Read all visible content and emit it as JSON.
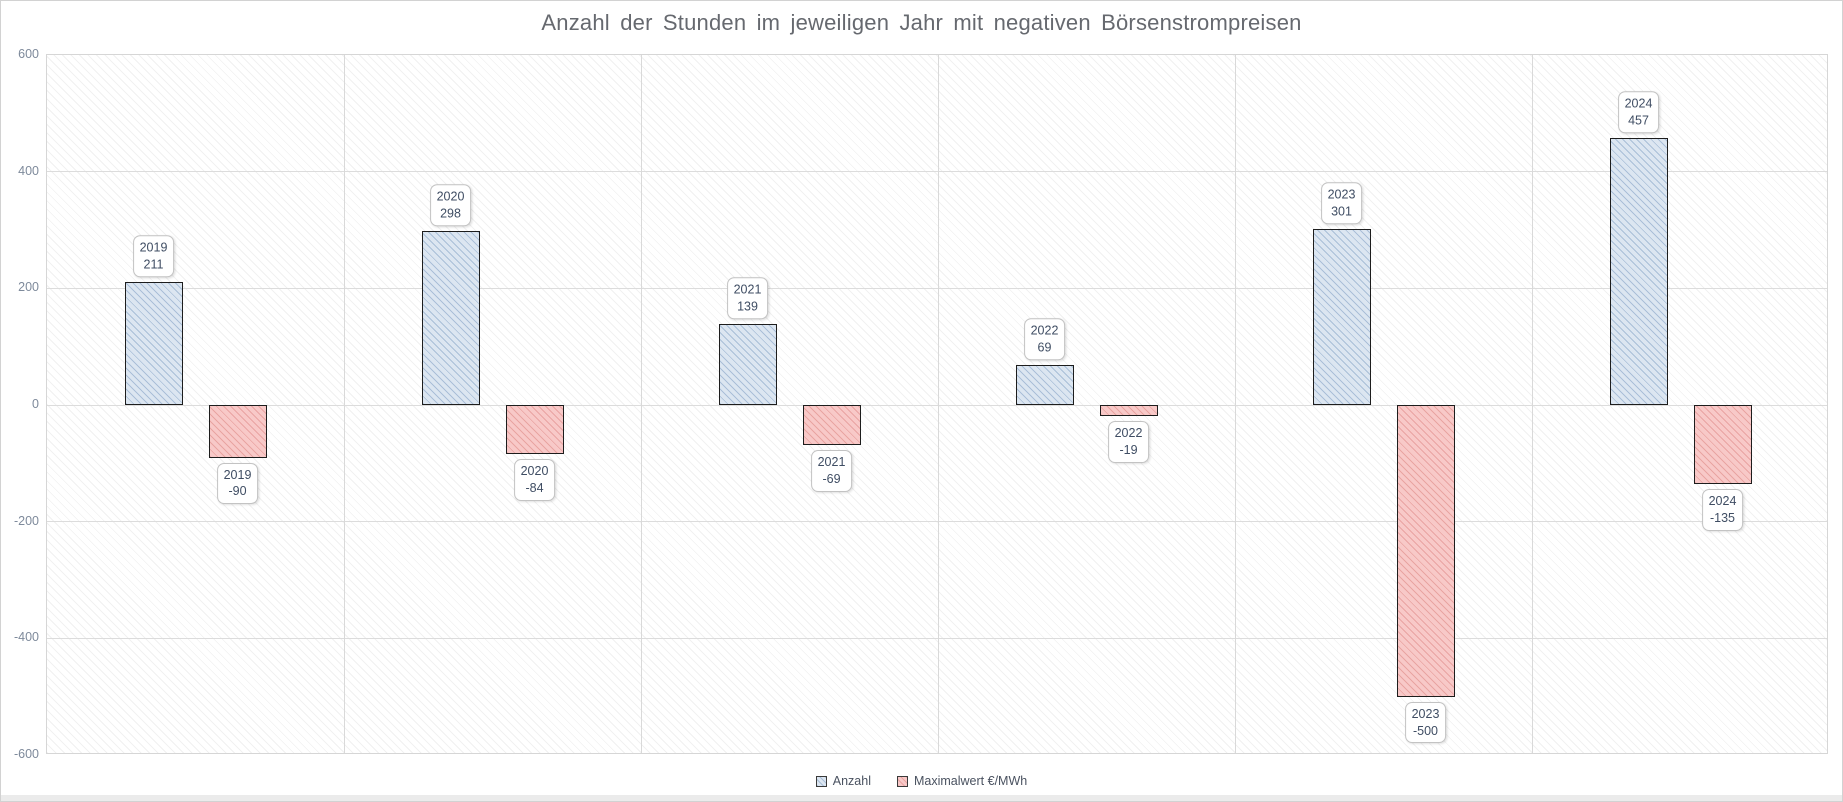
{
  "title": "Anzahl der Stunden im jeweiligen Jahr mit negativen Börsenstrompreisen",
  "legend": {
    "items": [
      {
        "label": "Anzahl",
        "fill": "#dce6f1",
        "hatch": "#aabfd8"
      },
      {
        "label": "Maximalwert €/MWh",
        "fill": "#f8c9c8",
        "hatch": "#e9a4a2"
      }
    ]
  },
  "colors": {
    "bar_border": "#1d1d1d",
    "gridline": "#dcdcdc",
    "plot_border": "#d6d6d6",
    "tick_text": "#7e8a9b",
    "label_text": "#3f4d63",
    "title_text": "#66696f"
  },
  "chart_data": {
    "type": "bar",
    "title": "Anzahl der Stunden im jeweiligen Jahr mit negativen Börsenstrompreisen",
    "categories": [
      "2019",
      "2020",
      "2021",
      "2022",
      "2023",
      "2024"
    ],
    "series": [
      {
        "name": "Anzahl",
        "values": [
          211,
          298,
          139,
          69,
          301,
          457
        ],
        "fill": "#dce6f1",
        "hatch": "#aabfd8"
      },
      {
        "name": "Maximalwert €/MWh",
        "values": [
          -90,
          -84,
          -69,
          -19,
          -500,
          -135
        ],
        "fill": "#f8c9c8",
        "hatch": "#e9a4a2"
      }
    ],
    "xlabel": "",
    "ylabel": "",
    "ylim": [
      -600,
      600
    ],
    "yticks": [
      600,
      400,
      200,
      0,
      -200,
      -400,
      -600
    ],
    "grid": true,
    "hatch_pattern": "light-downward-diagonal",
    "data_labels": "category_and_value",
    "legend_position": "bottom"
  }
}
